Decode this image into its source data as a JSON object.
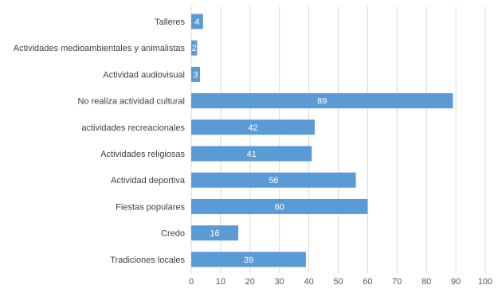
{
  "chart_data": {
    "type": "bar",
    "orientation": "horizontal",
    "categories": [
      "Talleres",
      "Actividades medioambientales y animalistas",
      "Actividad audiovisual",
      "No realiza actividad cultural",
      "actividades recreacionales",
      "Actividades religiosas",
      "Actividad deportiva",
      "Fiestas populares",
      "Credo",
      "Tradiciones locales"
    ],
    "values": [
      4,
      2,
      3,
      89,
      42,
      41,
      56,
      60,
      16,
      39
    ],
    "data_labels": [
      "4",
      "2",
      "3",
      "89",
      "42",
      "41",
      "56",
      "60",
      "16",
      "39"
    ],
    "xlim": [
      0,
      100
    ],
    "x_ticks": [
      0,
      10,
      20,
      30,
      40,
      50,
      60,
      70,
      80,
      90,
      100
    ],
    "x_tick_labels": [
      "0",
      "10",
      "20",
      "30",
      "40",
      "50",
      "60",
      "70",
      "80",
      "90",
      "100"
    ],
    "grid": "vertical",
    "bar_color": "#5b9bd5",
    "title": "",
    "xlabel": "",
    "ylabel": ""
  }
}
